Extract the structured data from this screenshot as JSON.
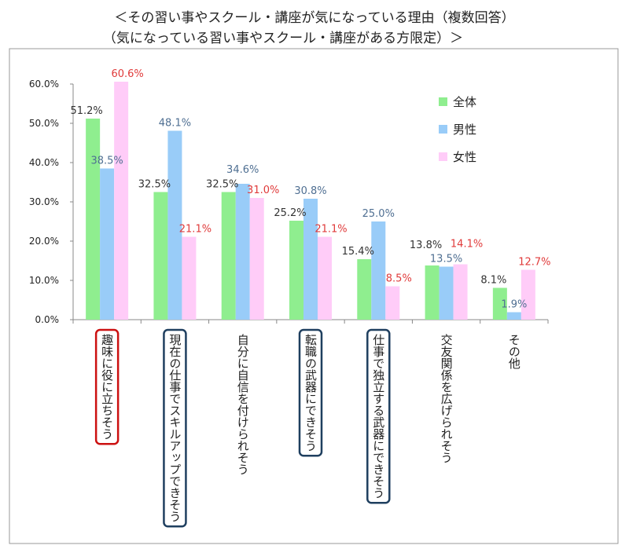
{
  "chart_data": {
    "type": "bar",
    "title": "＜その習い事やスクール・講座が気になっている理由（複数回答）",
    "subtitle": "（気になっている習い事やスクール・講座がある方限定）＞",
    "categories": [
      "趣味に役に立ちそう",
      "現在の仕事でスキルアップできそう",
      "自分に自信を付けられそう",
      "転職の武器にできそう",
      "仕事で独立する武器にできそう",
      "交友関係を広げられそう",
      "その他"
    ],
    "series": [
      {
        "name": "全体",
        "color": "#8FEE8F",
        "label_color": "#333333",
        "values": [
          51.2,
          32.5,
          32.5,
          25.2,
          15.4,
          13.8,
          8.1
        ],
        "labels": [
          "51.2%",
          "32.5%",
          "32.5%",
          "25.2%",
          "15.4%",
          "13.8%",
          "8.1%"
        ]
      },
      {
        "name": "男性",
        "color": "#99CCF8",
        "label_color": "#4F6F92",
        "values": [
          38.5,
          48.1,
          34.6,
          30.8,
          25.0,
          13.5,
          1.9
        ],
        "labels": [
          "38.5%",
          "48.1%",
          "34.6%",
          "30.8%",
          "25.0%",
          "13.5%",
          "1.9%"
        ]
      },
      {
        "name": "女性",
        "color": "#FFCCF8",
        "label_color": "#E03A3A",
        "values": [
          60.6,
          21.1,
          31.0,
          21.1,
          8.5,
          14.1,
          12.7
        ],
        "labels": [
          "60.6%",
          "21.1%",
          "31.0%",
          "21.1%",
          "8.5%",
          "14.1%",
          "12.7%"
        ]
      }
    ],
    "ylim": [
      0,
      60
    ],
    "yticks": [
      "0.0%",
      "10.0%",
      "20.0%",
      "30.0%",
      "40.0%",
      "50.0%",
      "60.0%"
    ],
    "grid": false,
    "legend": "top-right",
    "highlight": {
      "red_box": [
        0
      ],
      "blue_box": [
        1,
        3,
        4
      ],
      "red_color": "#CC1111",
      "blue_color": "#1F3F5F"
    }
  }
}
